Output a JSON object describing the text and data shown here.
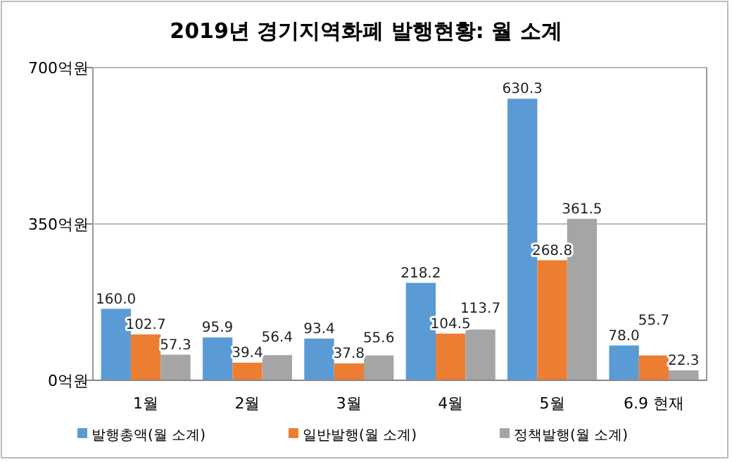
{
  "chart_data": {
    "type": "bar",
    "title": "2019년 경기지역화폐 발행현황: 월 소계",
    "categories": [
      "1월",
      "2월",
      "3월",
      "4월",
      "5월",
      "6.9 현재"
    ],
    "series": [
      {
        "name": "발행총액(월 소계)",
        "color": "#5b9bd5",
        "values": [
          160.0,
          95.9,
          93.4,
          218.2,
          630.3,
          78.0
        ],
        "value_labels": [
          "160.0",
          "95.9",
          "93.4",
          "218.2",
          "630.3",
          "78.0"
        ]
      },
      {
        "name": "일반발행(월 소계)",
        "color": "#ed7d31",
        "values": [
          102.7,
          39.4,
          37.8,
          104.5,
          268.8,
          55.7
        ],
        "value_labels": [
          "102.7",
          "39.4",
          "37.8",
          "104.5",
          "268.8",
          "55.7"
        ]
      },
      {
        "name": "정책발행(월 소계)",
        "color": "#a5a5a5",
        "values": [
          57.3,
          56.4,
          55.6,
          113.7,
          361.5,
          22.3
        ],
        "value_labels": [
          "57.3",
          "56.4",
          "55.6",
          "113.7",
          "361.5",
          "22.3"
        ]
      }
    ],
    "ylim": [
      0,
      700
    ],
    "yticks": [
      {
        "value": 0,
        "label": "0억원"
      },
      {
        "value": 350,
        "label": "350억원"
      },
      {
        "value": 700,
        "label": "700억원"
      }
    ],
    "grid": "y",
    "legend": "bottom"
  }
}
